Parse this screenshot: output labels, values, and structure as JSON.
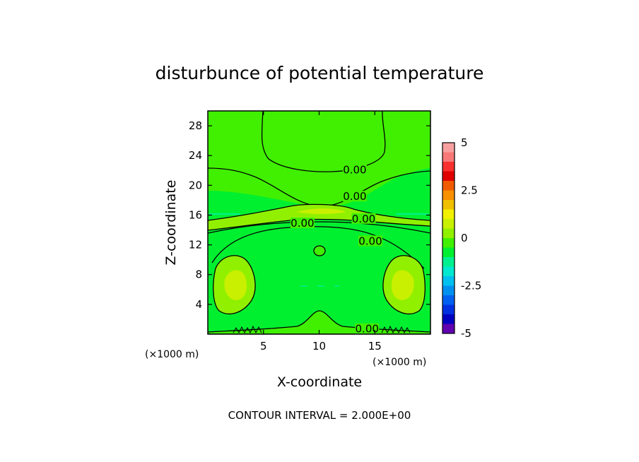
{
  "chart_data": {
    "type": "heatmap",
    "title": "disturbunce of potential temperature",
    "xlabel": "X-coordinate",
    "ylabel": "Z-coordinate",
    "x_unit": "(×1000 m)",
    "z_unit": "(×1000 m)",
    "xlim": [
      0,
      20
    ],
    "ylim": [
      0,
      30
    ],
    "x_ticks": [
      5,
      10,
      15
    ],
    "y_ticks": [
      4,
      8,
      12,
      16,
      20,
      24,
      28
    ],
    "colorbar": {
      "range": [
        -5,
        5
      ],
      "tick_labels": [
        "5",
        "2.5",
        "0",
        "-2.5",
        "-5"
      ],
      "tick_values": [
        5,
        2.5,
        0,
        -2.5,
        -5
      ],
      "colors": [
        "#f8a0a0",
        "#f87878",
        "#f83030",
        "#e00000",
        "#f05a00",
        "#f89000",
        "#f0c000",
        "#f0f000",
        "#c8f000",
        "#90f000",
        "#40f000",
        "#00f030",
        "#00f090",
        "#00e8d0",
        "#00c0f0",
        "#0090f0",
        "#0060f0",
        "#0030e0",
        "#0000c0",
        "#6000b0"
      ]
    },
    "contour_labels": [
      {
        "text": "0.00",
        "x": 13.2,
        "y": 22.0
      },
      {
        "text": "0.00",
        "x": 13.2,
        "y": 18.4
      },
      {
        "text": "0.00",
        "x": 14.0,
        "y": 15.4
      },
      {
        "text": "0.00",
        "x": 8.5,
        "y": 14.8
      },
      {
        "text": "0.00",
        "x": 14.6,
        "y": 12.4
      },
      {
        "text": "0.00",
        "x": 14.3,
        "y": 0.6
      }
    ],
    "contour_interval": "CONTOUR INTERVAL = 2.000E+00"
  }
}
